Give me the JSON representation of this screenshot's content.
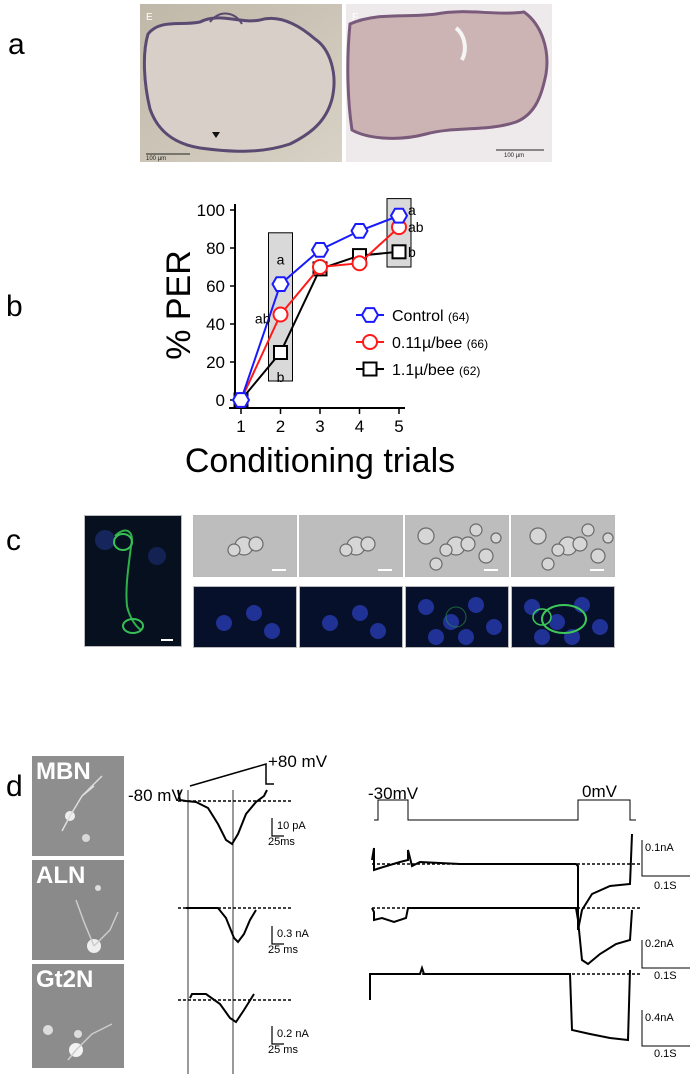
{
  "panels": {
    "a": {
      "letter": "a",
      "images": [
        {
          "corner_letter": "E",
          "scale_text": "100 µm"
        },
        {
          "corner_letter": "F",
          "scale_text": "100 µm"
        }
      ]
    },
    "b": {
      "letter": "b"
    },
    "c": {
      "letter": "c"
    },
    "d": {
      "letter": "d",
      "cells": [
        "MBN",
        "ALN",
        "Gt2N"
      ],
      "ramp_start": "-80 mV",
      "ramp_end": "+80 mV",
      "step1": "-30mV",
      "step2": "0mV",
      "ramp_scales": [
        {
          "current": "10 pA",
          "time": "25ms"
        },
        {
          "current": "0.3 nA",
          "time": "25 ms"
        },
        {
          "current": "0.2 nA",
          "time": "25 ms"
        }
      ],
      "step_scales": [
        {
          "current": "0.1nA",
          "time": "0.1S"
        },
        {
          "current": "0.2nA",
          "time": "0.1S"
        },
        {
          "current": "0.4nA",
          "time": "0.1S"
        }
      ]
    }
  },
  "chart_data": {
    "type": "line",
    "x": [
      1,
      2,
      3,
      4,
      5
    ],
    "xlabel": "Conditioning trials",
    "ylabel": "% PER",
    "ylim": [
      0,
      100
    ],
    "yticks": [
      0,
      20,
      40,
      60,
      80,
      100
    ],
    "xticks": [
      1,
      2,
      3,
      4,
      5
    ],
    "series": [
      {
        "name": "Control",
        "n_label": "(64)",
        "marker": "hexagon",
        "color": "#1a1aff",
        "values": [
          0,
          61,
          79,
          89,
          97
        ]
      },
      {
        "name": "0.11µ/bee",
        "n_label": "(66)",
        "marker": "circle",
        "color": "#ff1a1a",
        "values": [
          0,
          45,
          70,
          72,
          91
        ]
      },
      {
        "name": "1.1µ/bee",
        "n_label": "(62)",
        "marker": "square",
        "color": "#000000",
        "values": [
          0,
          25,
          69,
          76,
          78
        ]
      }
    ],
    "annotations": [
      {
        "x": 2,
        "y": 74,
        "text": "a"
      },
      {
        "x": 2,
        "y": 43,
        "text": "ab",
        "side": "left"
      },
      {
        "x": 2,
        "y": 12,
        "text": "b"
      },
      {
        "x": 5,
        "y": 100,
        "text": "a",
        "side": "right"
      },
      {
        "x": 5,
        "y": 91,
        "text": "ab",
        "side": "right"
      },
      {
        "x": 5,
        "y": 78,
        "text": "b",
        "side": "right"
      }
    ],
    "highlight_boxes": [
      {
        "x": 2,
        "y_range": [
          10,
          88
        ]
      },
      {
        "x": 5,
        "y_range": [
          70,
          106
        ]
      }
    ]
  }
}
